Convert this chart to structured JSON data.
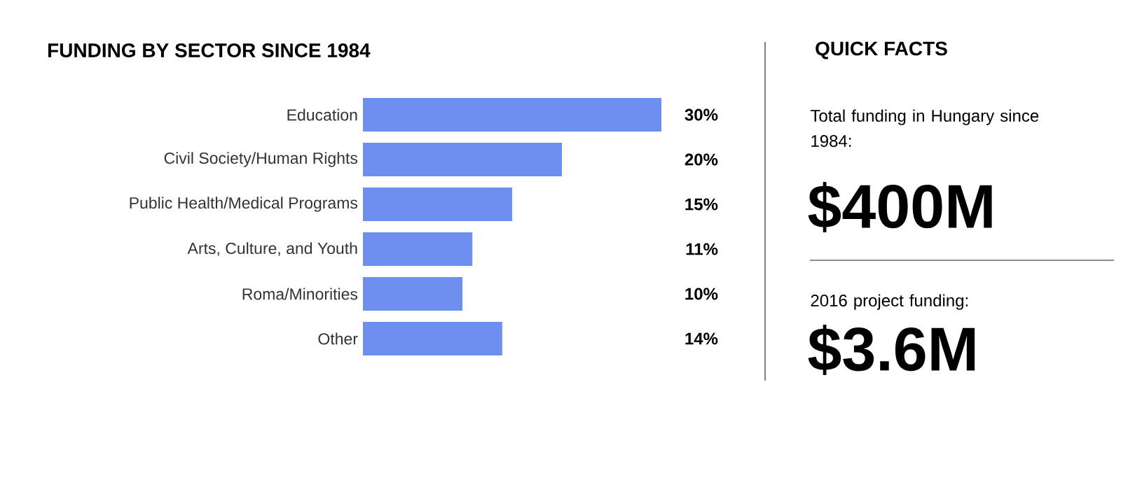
{
  "chart_data": [
    {
      "type": "bar",
      "orientation": "horizontal",
      "title": "FUNDING BY SECTOR SINCE 1984",
      "categories": [
        "Education",
        "Civil Society/Human Rights",
        "Public Health/Medical Programs",
        "Arts, Culture, and Youth",
        "Roma/Minorities",
        "Other"
      ],
      "values": [
        30,
        20,
        15,
        11,
        10,
        14
      ],
      "color": "#6f8ff0",
      "value_labels": [
        "30%",
        "20%",
        "15%",
        "11%",
        "10%",
        "14%"
      ]
    },
    {
      "type": "other",
      "title": "QUICK FACTS",
      "annotations": [
        "Total funding in Hungary since 1984:",
        "$400M",
        "2016 project funding:",
        "$3.6M"
      ]
    }
  ]
}
